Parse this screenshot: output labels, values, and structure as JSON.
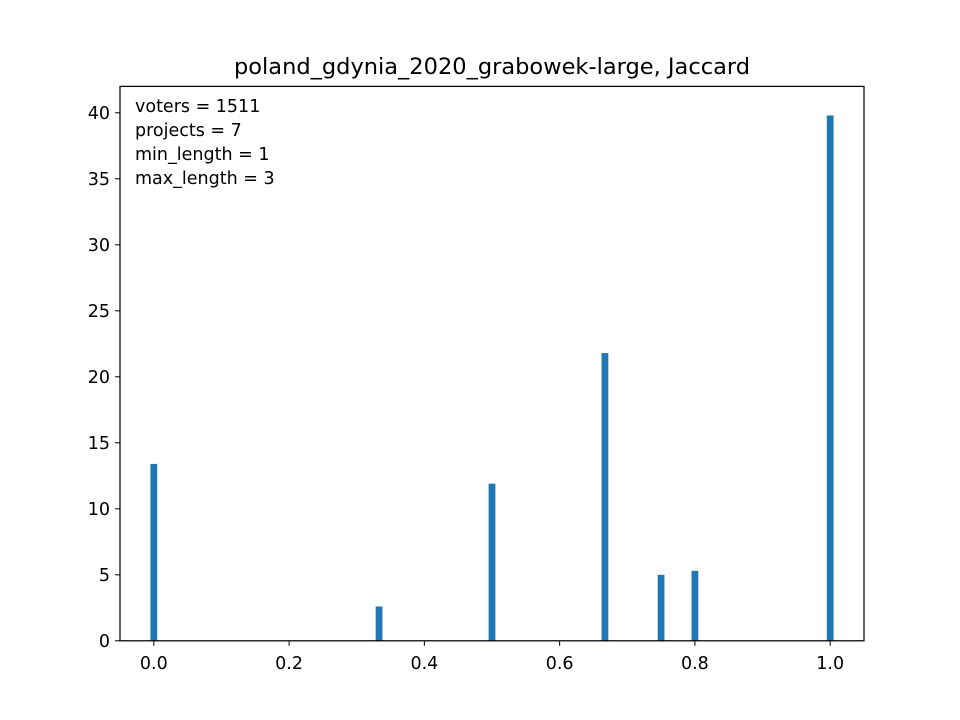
{
  "chart_data": {
    "type": "bar",
    "title": "poland_gdynia_2020_grabowek-large, Jaccard",
    "xlabel": "",
    "ylabel": "",
    "xlim": [
      -0.05,
      1.05
    ],
    "ylim": [
      0,
      42
    ],
    "bar_width": 0.01,
    "bar_color": "#1f77b4",
    "x_ticks": [
      0.0,
      0.2,
      0.4,
      0.6,
      0.8,
      1.0
    ],
    "x_tick_labels": [
      "0.0",
      "0.2",
      "0.4",
      "0.6",
      "0.8",
      "1.0"
    ],
    "y_ticks": [
      0,
      5,
      10,
      15,
      20,
      25,
      30,
      35,
      40
    ],
    "y_tick_labels": [
      "0",
      "5",
      "10",
      "15",
      "20",
      "25",
      "30",
      "35",
      "40"
    ],
    "grid": false,
    "bars": [
      {
        "x": 0.0,
        "value": 13.4
      },
      {
        "x": 0.333,
        "value": 2.6
      },
      {
        "x": 0.5,
        "value": 11.9
      },
      {
        "x": 0.667,
        "value": 21.8
      },
      {
        "x": 0.75,
        "value": 5.0
      },
      {
        "x": 0.8,
        "value": 5.3
      },
      {
        "x": 1.0,
        "value": 39.8
      }
    ],
    "annotation_lines": [
      "voters = 1511",
      "projects = 7",
      "min_length = 1",
      "max_length = 3"
    ],
    "annotation_position": "top-left"
  }
}
